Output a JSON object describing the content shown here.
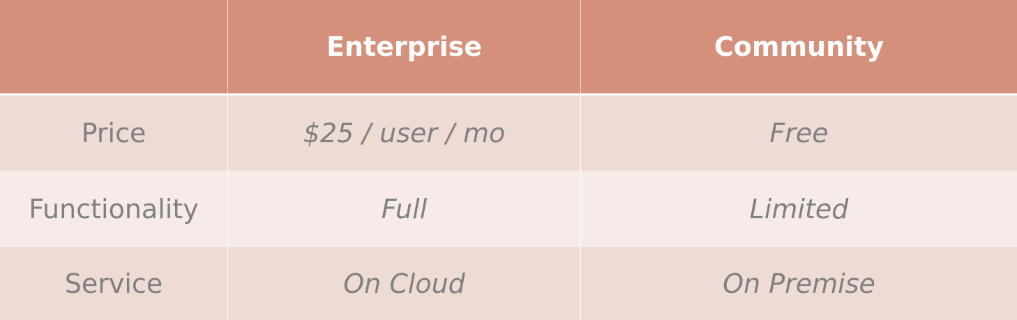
{
  "header": {
    "corner": "",
    "col1": "Enterprise",
    "col2": "Community"
  },
  "rows": [
    {
      "label": "Price",
      "enterprise": "$25 / user / mo",
      "community": "Free"
    },
    {
      "label": "Functionality",
      "enterprise": "Full",
      "community": "Limited"
    },
    {
      "label": "Service",
      "enterprise": "On Cloud",
      "community": "On Premise"
    }
  ],
  "colors": {
    "header_bg": "#d4907a",
    "row_dark": "#eedbd5",
    "row_light": "#f6ebe8",
    "text_gray": "#808080",
    "header_text": "#ffffff"
  }
}
